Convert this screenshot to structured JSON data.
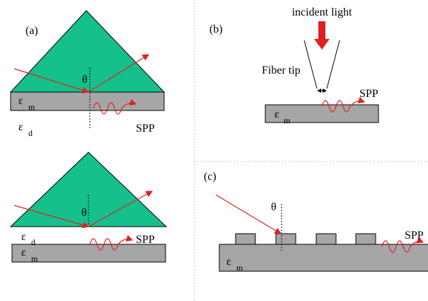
{
  "panel_a": {
    "label": "(a)",
    "upper": {
      "theta": "θ",
      "eps_m": "ε",
      "eps_m_sub": "m",
      "eps_d": "ε",
      "eps_d_sub": "d",
      "spp": "SPP"
    },
    "lower": {
      "theta": "θ",
      "eps_d": "ε",
      "eps_d_sub": "d",
      "eps_m": "ε",
      "eps_m_sub": "m",
      "spp": "SPP"
    }
  },
  "panel_b": {
    "label": "(b)",
    "incident": "incident light",
    "fiber": "Fiber tip",
    "spp": "SPP",
    "eps_m": "ε",
    "eps_m_sub": "m"
  },
  "panel_c": {
    "label": "(c)",
    "theta": "θ",
    "spp": "SPP",
    "eps_m": "ε",
    "eps_m_sub": "m"
  }
}
